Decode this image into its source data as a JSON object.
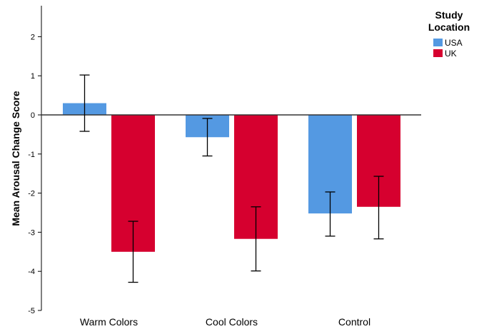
{
  "chart_data": {
    "type": "bar",
    "categories": [
      "Warm Colors",
      "Cool Colors",
      "Control"
    ],
    "series": [
      {
        "name": "USA",
        "color": "#5499E2",
        "values": [
          0.3,
          -0.57,
          -2.52
        ],
        "error_low": [
          -0.42,
          -1.05,
          -3.1
        ],
        "error_high": [
          1.02,
          -0.09,
          -1.97
        ]
      },
      {
        "name": "UK",
        "color": "#D6002F",
        "values": [
          -3.5,
          -3.17,
          -2.35
        ],
        "error_low": [
          -4.28,
          -3.99,
          -3.17
        ],
        "error_high": [
          -2.72,
          -2.35,
          -1.57
        ]
      }
    ],
    "title": "",
    "xlabel": "",
    "ylabel": "Mean Arousal Change Score",
    "ylim": [
      -5,
      2.7
    ],
    "yticks": [
      2,
      1,
      0,
      -1,
      -2,
      -3,
      -4,
      -5
    ],
    "grid": false,
    "legend_title": "Study Location",
    "legend_title_lines": [
      "Study",
      "Location"
    ],
    "legend_position": "top-right"
  }
}
